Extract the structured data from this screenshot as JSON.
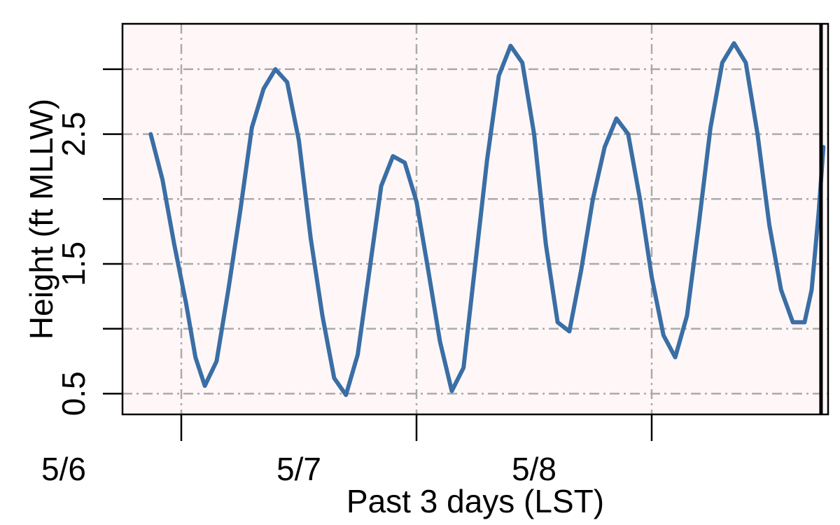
{
  "colors": {
    "plot_background": "#fff7f7",
    "series_line": "#3a6ea5",
    "grid": "#aaaaaa",
    "now_marker": "#000000"
  },
  "chart_data": {
    "type": "line",
    "title": "",
    "xlabel": "Past 3 days (LST)",
    "ylabel": "Height (ft MLLW)",
    "x_unit": "days since start of 5/5",
    "xlim": [
      0.75,
      3.75
    ],
    "ylim": [
      0.34,
      3.35
    ],
    "yticks": [
      0.5,
      1.0,
      1.5,
      2.0,
      2.5,
      3.0
    ],
    "ytick_labels": [
      "0.5",
      "",
      "1.5",
      "",
      "2.5",
      ""
    ],
    "xticks": [
      1,
      2,
      3
    ],
    "xtick_labels": [
      {
        "label": "5/6",
        "at": 0.5
      },
      {
        "label": "5/7",
        "at": 1.5
      },
      {
        "label": "5/8",
        "at": 2.5
      }
    ],
    "grid": true,
    "now_marker_x": 3.72,
    "series": [
      {
        "values": [
          [
            0.87,
            2.5
          ],
          [
            0.92,
            2.15
          ],
          [
            0.97,
            1.65
          ],
          [
            1.02,
            1.2
          ],
          [
            1.06,
            0.78
          ],
          [
            1.1,
            0.56
          ],
          [
            1.15,
            0.75
          ],
          [
            1.2,
            1.3
          ],
          [
            1.25,
            1.9
          ],
          [
            1.3,
            2.55
          ],
          [
            1.35,
            2.85
          ],
          [
            1.4,
            3.0
          ],
          [
            1.45,
            2.9
          ],
          [
            1.5,
            2.45
          ],
          [
            1.55,
            1.7
          ],
          [
            1.6,
            1.1
          ],
          [
            1.65,
            0.62
          ],
          [
            1.7,
            0.49
          ],
          [
            1.75,
            0.8
          ],
          [
            1.8,
            1.45
          ],
          [
            1.85,
            2.1
          ],
          [
            1.9,
            2.33
          ],
          [
            1.95,
            2.28
          ],
          [
            2.0,
            1.98
          ],
          [
            2.05,
            1.45
          ],
          [
            2.1,
            0.9
          ],
          [
            2.15,
            0.52
          ],
          [
            2.2,
            0.7
          ],
          [
            2.25,
            1.5
          ],
          [
            2.3,
            2.3
          ],
          [
            2.35,
            2.95
          ],
          [
            2.4,
            3.18
          ],
          [
            2.45,
            3.05
          ],
          [
            2.5,
            2.5
          ],
          [
            2.55,
            1.65
          ],
          [
            2.6,
            1.05
          ],
          [
            2.65,
            0.98
          ],
          [
            2.7,
            1.45
          ],
          [
            2.75,
            2.0
          ],
          [
            2.8,
            2.4
          ],
          [
            2.85,
            2.62
          ],
          [
            2.9,
            2.5
          ],
          [
            2.95,
            2.0
          ],
          [
            3.0,
            1.4
          ],
          [
            3.05,
            0.95
          ],
          [
            3.1,
            0.78
          ],
          [
            3.15,
            1.1
          ],
          [
            3.2,
            1.8
          ],
          [
            3.25,
            2.55
          ],
          [
            3.3,
            3.05
          ],
          [
            3.35,
            3.2
          ],
          [
            3.4,
            3.05
          ],
          [
            3.45,
            2.5
          ],
          [
            3.5,
            1.8
          ],
          [
            3.55,
            1.3
          ],
          [
            3.6,
            1.05
          ],
          [
            3.65,
            1.05
          ],
          [
            3.68,
            1.3
          ],
          [
            3.71,
            1.9
          ],
          [
            3.73,
            2.4
          ]
        ]
      }
    ]
  }
}
